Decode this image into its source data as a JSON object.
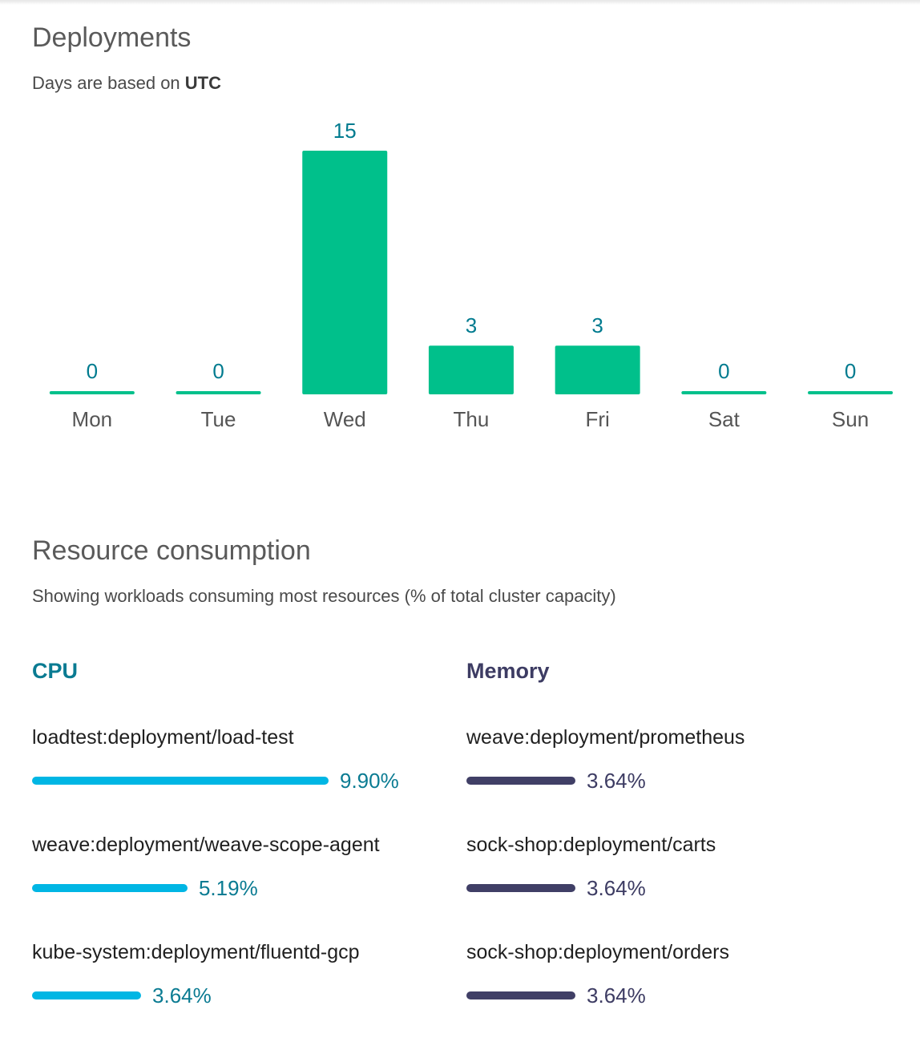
{
  "deployments": {
    "title": "Deployments",
    "subtitle_prefix": "Days are based on ",
    "subtitle_timezone": "UTC"
  },
  "chart_data": {
    "type": "bar",
    "categories": [
      "Mon",
      "Tue",
      "Wed",
      "Thu",
      "Fri",
      "Sat",
      "Sun"
    ],
    "values": [
      0,
      0,
      15,
      3,
      3,
      0,
      0
    ],
    "bar_color": "#00c08b",
    "label_color": "#007b8f",
    "tick_color": "#555555"
  },
  "resources": {
    "title": "Resource consumption",
    "subtitle": "Showing workloads consuming most resources (% of total cluster capacity)",
    "cpu": {
      "label": "CPU",
      "color": "#0a7b92",
      "bar_color": "#00b6e4",
      "items": [
        {
          "name": "loadtest:deployment/load-test",
          "value": 9.9,
          "display": "9.90%"
        },
        {
          "name": "weave:deployment/weave-scope-agent",
          "value": 5.19,
          "display": "5.19%"
        },
        {
          "name": "kube-system:deployment/fluentd-gcp",
          "value": 3.64,
          "display": "3.64%"
        }
      ]
    },
    "memory": {
      "label": "Memory",
      "color": "#3d3c63",
      "bar_color": "#403f66",
      "items": [
        {
          "name": "weave:deployment/prometheus",
          "value": 3.64,
          "display": "3.64%"
        },
        {
          "name": "sock-shop:deployment/carts",
          "value": 3.64,
          "display": "3.64%"
        },
        {
          "name": "sock-shop:deployment/orders",
          "value": 3.64,
          "display": "3.64%"
        }
      ]
    }
  }
}
